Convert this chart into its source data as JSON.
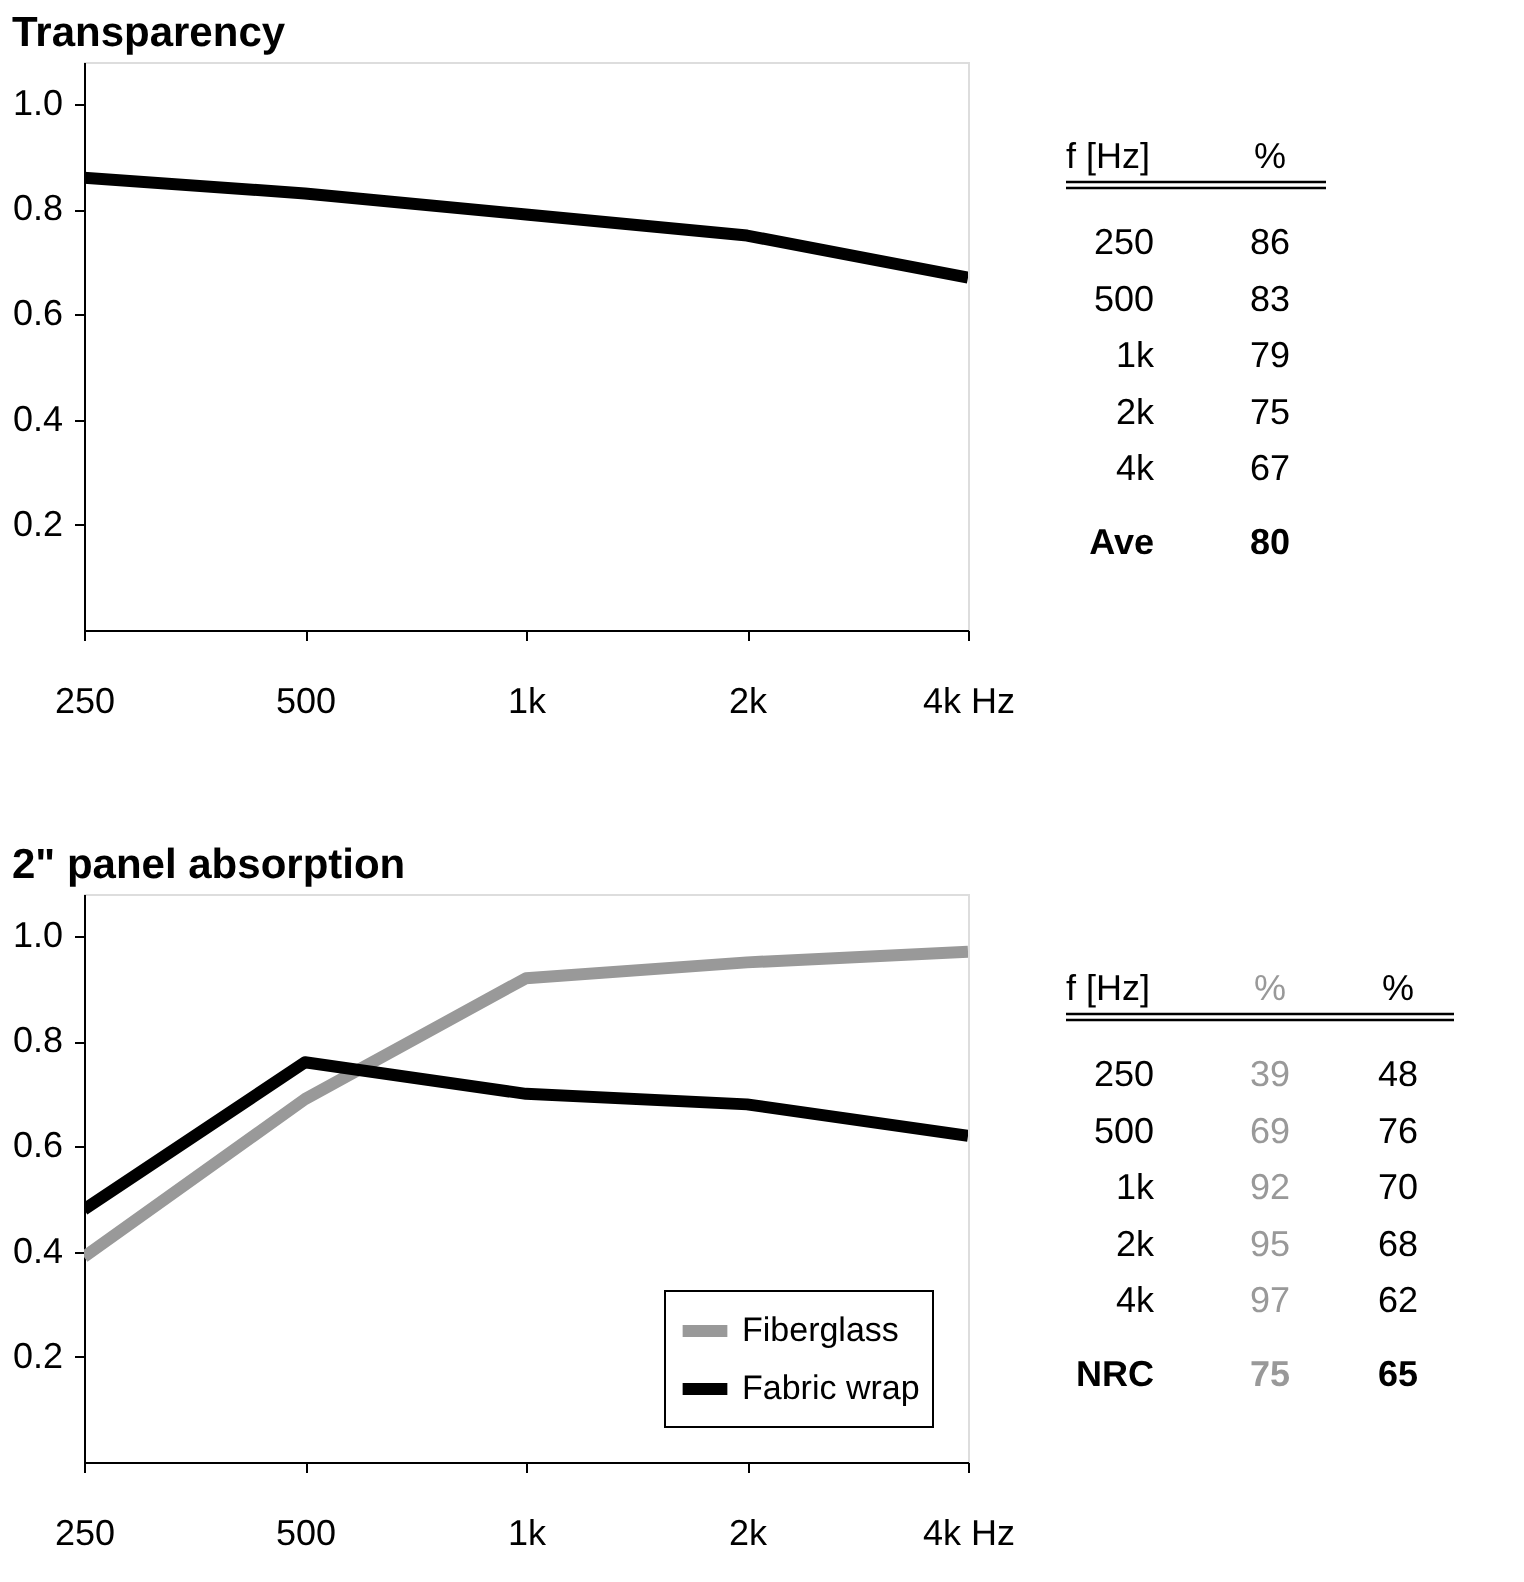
{
  "chart_data": [
    {
      "type": "line",
      "title": "Transparency",
      "log": "x",
      "xlim": [
        250,
        4000
      ],
      "xticks": [
        250,
        500,
        {
          "value": 1000,
          "label": "1k"
        },
        {
          "value": 2000,
          "label": "2k"
        },
        {
          "value": 4000,
          "label": "4k Hz"
        }
      ],
      "ylim": [
        0,
        1.08
      ],
      "yticks": [
        {
          "value": 0.2,
          "label": "0.2"
        },
        {
          "value": 0.4,
          "label": "0.4"
        },
        {
          "value": 0.6,
          "label": "0.6"
        },
        {
          "value": 0.8,
          "label": "0.8"
        },
        {
          "value": 1.0,
          "label": "1.0"
        }
      ],
      "x": [
        250,
        500,
        1000,
        2000,
        4000
      ],
      "grid": false,
      "legend": false,
      "series": [
        {
          "color": "#000000",
          "values": [
            0.86,
            0.83,
            0.79,
            0.75,
            0.67
          ]
        }
      ],
      "annotations": [
        "f [Hz]",
        "%",
        "250",
        "86",
        "500",
        "83",
        "1k",
        "79",
        "2k",
        "75",
        "4k",
        "67",
        "Ave",
        "80"
      ]
    },
    {
      "type": "line",
      "title": "2\" panel absorption",
      "log": "x",
      "xlim": [
        250,
        4000
      ],
      "xticks": [
        250,
        500,
        {
          "value": 1000,
          "label": "1k"
        },
        {
          "value": 2000,
          "label": "2k"
        },
        {
          "value": 4000,
          "label": "4k Hz"
        }
      ],
      "ylim": [
        0,
        1.08
      ],
      "yticks": [
        {
          "value": 0.2,
          "label": "0.2"
        },
        {
          "value": 0.4,
          "label": "0.4"
        },
        {
          "value": 0.6,
          "label": "0.6"
        },
        {
          "value": 0.8,
          "label": "0.8"
        },
        {
          "value": 1.0,
          "label": "1.0"
        }
      ],
      "x": [
        250,
        500,
        1000,
        2000,
        4000
      ],
      "grid": false,
      "legend": "bottom right",
      "series": [
        {
          "name": "Fiberglass",
          "color": "#999999",
          "values": [
            0.39,
            0.69,
            0.92,
            0.95,
            0.97
          ]
        },
        {
          "name": "Fabric wrap",
          "color": "#000000",
          "values": [
            0.48,
            0.76,
            0.7,
            0.68,
            0.62
          ]
        }
      ],
      "annotations": [
        "f [Hz]",
        "%",
        "%",
        "250",
        "39",
        "48",
        "500",
        "69",
        "76",
        "1k",
        "92",
        "70",
        "2k",
        "95",
        "68",
        "4k",
        "97",
        "62",
        "NRC",
        "75",
        "65"
      ]
    }
  ]
}
